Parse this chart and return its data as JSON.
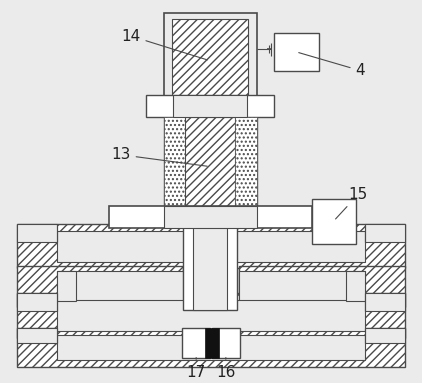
{
  "bg_color": "#ebebeb",
  "lc": "#4a4a4a",
  "white": "#ffffff",
  "black": "#111111",
  "figsize": [
    4.22,
    3.83
  ],
  "dpi": 100
}
